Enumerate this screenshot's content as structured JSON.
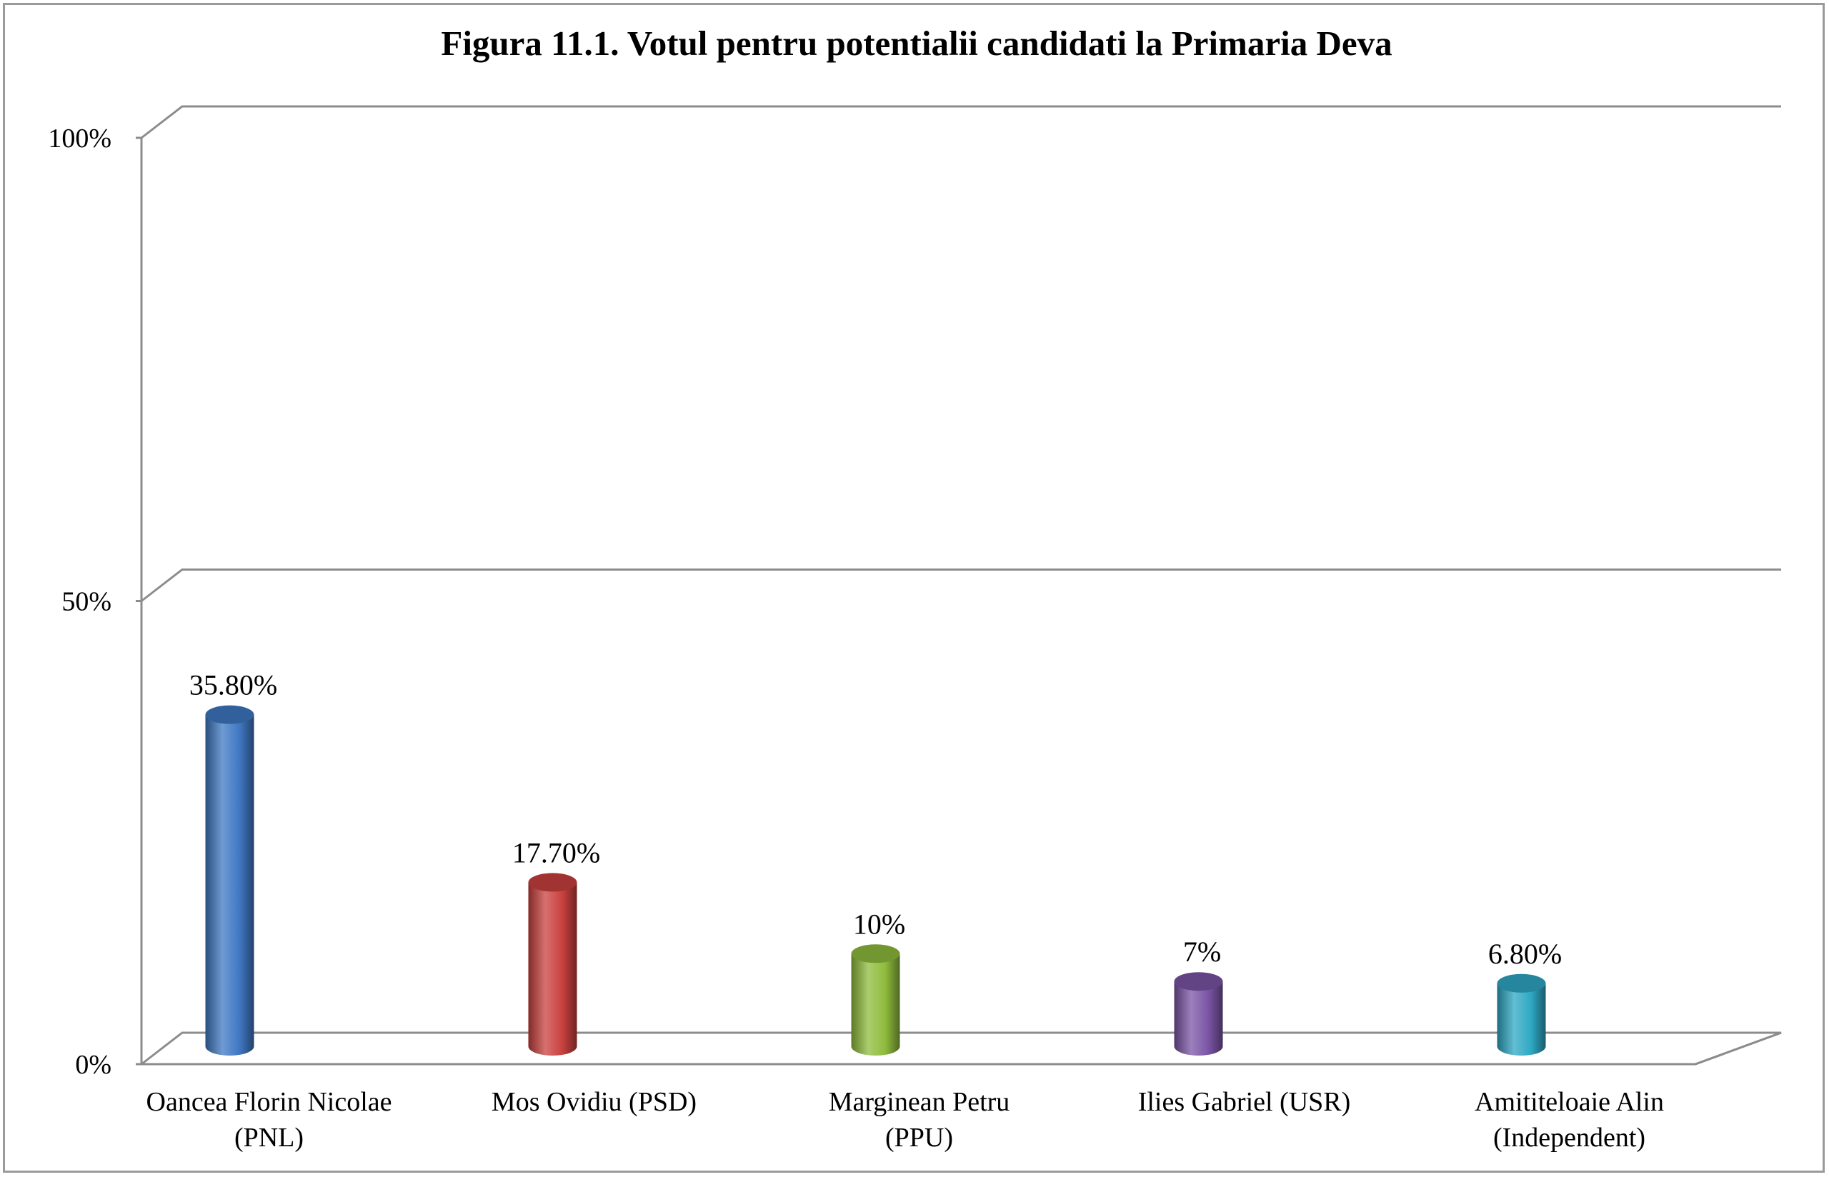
{
  "chart_data": {
    "type": "bar",
    "title": "Figura 11.1. Votul pentru potentialii candidati la Primaria Deva",
    "categories": [
      [
        "Oancea Florin Nicolae",
        "(PNL)"
      ],
      [
        "Mos Ovidiu (PSD)"
      ],
      [
        "Marginean Petru",
        "(PPU)"
      ],
      [
        "Ilies Gabriel (USR)"
      ],
      [
        "Amititeloaie Alin",
        "(Independent)"
      ]
    ],
    "values": [
      35.8,
      17.7,
      10,
      7,
      6.8
    ],
    "data_labels": [
      "35.80%",
      "17.70%",
      "10%",
      "7%",
      "6.80%"
    ],
    "colors": [
      "#3f78c3",
      "#c9413e",
      "#8fbc3c",
      "#7b55a6",
      "#2ea8c4"
    ],
    "y_ticks": [
      {
        "value": 0,
        "label": "0%"
      },
      {
        "value": 50,
        "label": "50%"
      },
      {
        "value": 100,
        "label": "100%"
      }
    ],
    "ylim": [
      0,
      100
    ],
    "xlabel": "",
    "ylabel": "",
    "grid": true,
    "legend": "none"
  }
}
